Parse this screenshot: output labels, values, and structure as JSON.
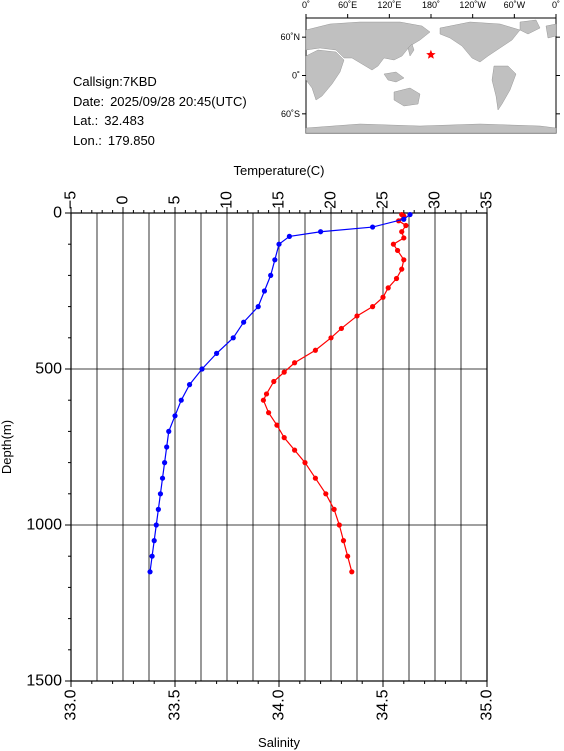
{
  "station": {
    "callsign_label": "Callsign:",
    "callsign": "7KBD",
    "date_label": "Date:",
    "date": "2025/09/28 20:45(UTC)",
    "lat_label": "Lat.:",
    "lat": "32.483",
    "lon_label": "Lon.:",
    "lon": "179.850"
  },
  "map": {
    "lon_labels": [
      "0˚",
      "60˚E",
      "120˚E",
      "180˚",
      "120˚W",
      "60˚W",
      "0˚"
    ],
    "lat_labels": [
      "60˚N",
      "0˚",
      "60˚S"
    ],
    "marker": {
      "lat": 32.483,
      "lon": 179.85,
      "color": "#ff0000",
      "symbol": "star"
    },
    "land_color": "#c0c0c0",
    "ocean_color": "#ffffff"
  },
  "colors": {
    "temperature": "#ff0000",
    "salinity": "#0000ff"
  },
  "chart_data": {
    "type": "line",
    "ylabel": "Depth(m)",
    "ylim": [
      1500,
      0
    ],
    "y_ticks": [
      0,
      500,
      1000,
      1500
    ],
    "y_tick_labels": [
      "0",
      "500",
      "1000",
      "1500"
    ],
    "grid": true,
    "temperature_axis": {
      "label": "Temperature(C)",
      "position": "top",
      "range": [
        -5,
        35
      ],
      "ticks": [
        -5,
        0,
        5,
        10,
        15,
        20,
        25,
        30,
        35
      ],
      "tick_labels": [
        "−5",
        "0",
        "5",
        "10",
        "15",
        "20",
        "25",
        "30",
        "35"
      ]
    },
    "salinity_axis": {
      "label": "Salinity",
      "position": "bottom",
      "range": [
        33.0,
        35.0
      ],
      "ticks": [
        33.0,
        33.5,
        34.0,
        34.5,
        35.0
      ],
      "tick_labels": [
        "33.0",
        "33.5",
        "34.0",
        "34.5",
        "35.0"
      ]
    },
    "series": [
      {
        "axis": "temperature",
        "color": "#ff0000",
        "points": [
          [
            26.8,
            5
          ],
          [
            27.0,
            10
          ],
          [
            26.5,
            25
          ],
          [
            27.2,
            40
          ],
          [
            26.8,
            60
          ],
          [
            27.0,
            80
          ],
          [
            26.0,
            100
          ],
          [
            26.4,
            120
          ],
          [
            27.0,
            150
          ],
          [
            26.8,
            180
          ],
          [
            26.3,
            210
          ],
          [
            25.5,
            240
          ],
          [
            25.0,
            270
          ],
          [
            24.0,
            300
          ],
          [
            22.5,
            330
          ],
          [
            21.0,
            370
          ],
          [
            20.0,
            400
          ],
          [
            18.5,
            440
          ],
          [
            16.5,
            480
          ],
          [
            15.5,
            510
          ],
          [
            14.5,
            540
          ],
          [
            13.8,
            580
          ],
          [
            13.5,
            600
          ],
          [
            14.0,
            640
          ],
          [
            14.8,
            680
          ],
          [
            15.5,
            720
          ],
          [
            16.5,
            760
          ],
          [
            17.5,
            800
          ],
          [
            18.5,
            850
          ],
          [
            19.5,
            900
          ],
          [
            20.3,
            950
          ],
          [
            20.8,
            1000
          ],
          [
            21.2,
            1050
          ],
          [
            21.6,
            1100
          ],
          [
            22.0,
            1150
          ]
        ]
      },
      {
        "axis": "salinity",
        "color": "#0000ff",
        "points": [
          [
            34.63,
            5
          ],
          [
            34.6,
            20
          ],
          [
            34.45,
            45
          ],
          [
            34.2,
            60
          ],
          [
            34.05,
            75
          ],
          [
            34.0,
            100
          ],
          [
            33.98,
            150
          ],
          [
            33.96,
            200
          ],
          [
            33.93,
            250
          ],
          [
            33.9,
            300
          ],
          [
            33.83,
            350
          ],
          [
            33.78,
            400
          ],
          [
            33.7,
            450
          ],
          [
            33.63,
            500
          ],
          [
            33.57,
            550
          ],
          [
            33.53,
            600
          ],
          [
            33.5,
            650
          ],
          [
            33.47,
            700
          ],
          [
            33.46,
            750
          ],
          [
            33.45,
            800
          ],
          [
            33.44,
            850
          ],
          [
            33.43,
            900
          ],
          [
            33.42,
            950
          ],
          [
            33.41,
            1000
          ],
          [
            33.4,
            1050
          ],
          [
            33.39,
            1100
          ],
          [
            33.38,
            1150
          ]
        ]
      }
    ]
  }
}
